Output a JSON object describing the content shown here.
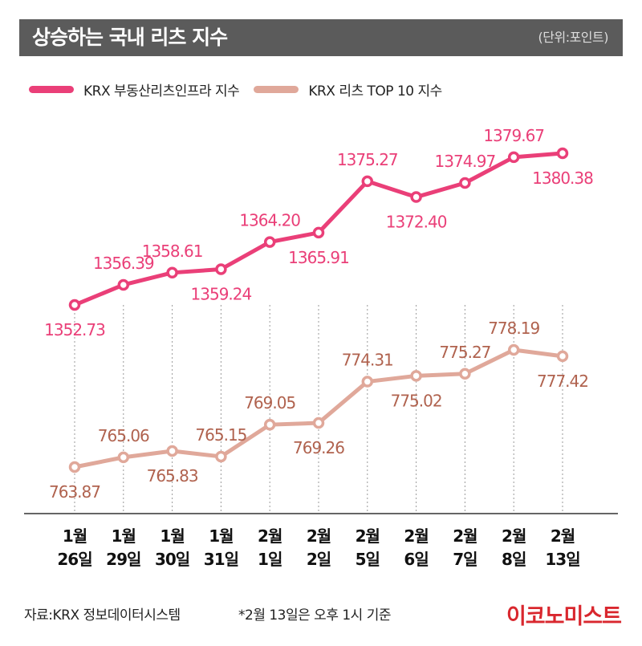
{
  "header": {
    "title": "상승하는 국내 리츠 지수",
    "unit": "(단위:포인트)"
  },
  "footer": {
    "source": "자료:KRX 정보데이터시스템",
    "note": "*2월 13일은 오후 1시 기준",
    "brand": "이코노미스트"
  },
  "colors": {
    "title_bar": "#5b5b5b",
    "series_1_line": "#ea3f78",
    "series_1_label": "#ea3f78",
    "series_2_line": "#e0a89a",
    "series_2_label": "#b0624e",
    "brand": "#d9272e"
  },
  "chart_data": {
    "type": "line",
    "categories": [
      [
        "1월",
        "26일"
      ],
      [
        "1월",
        "29일"
      ],
      [
        "1월",
        "30일"
      ],
      [
        "1월",
        "31일"
      ],
      [
        "2월",
        "1일"
      ],
      [
        "2월",
        "2일"
      ],
      [
        "2월",
        "5일"
      ],
      [
        "2월",
        "6일"
      ],
      [
        "2월",
        "7일"
      ],
      [
        "2월",
        "8일"
      ],
      [
        "2월",
        "13일"
      ]
    ],
    "series": [
      {
        "name": "KRX 부동산리츠인프라 지수",
        "values": [
          1352.73,
          1356.39,
          1358.61,
          1359.24,
          1364.2,
          1365.91,
          1375.27,
          1372.4,
          1374.97,
          1379.67,
          1380.38
        ],
        "labels": [
          "1352.73",
          "1356.39",
          "1358.61",
          "1359.24",
          "1364.20",
          "1365.91",
          "1375.27",
          "1372.40",
          "1374.97",
          "1379.67",
          "1380.38"
        ],
        "label_side": [
          "below",
          "above",
          "above",
          "below",
          "above",
          "below",
          "above",
          "below",
          "above",
          "above",
          "below"
        ]
      },
      {
        "name": "KRX 리츠 TOP 10 지수",
        "values": [
          763.87,
          765.06,
          765.83,
          765.15,
          769.05,
          769.26,
          774.31,
          775.02,
          775.27,
          778.19,
          777.42
        ],
        "labels": [
          "763.87",
          "765.06",
          "765.83",
          "765.15",
          "769.05",
          "769.26",
          "774.31",
          "775.02",
          "775.27",
          "778.19",
          "777.42"
        ],
        "label_side": [
          "below",
          "above",
          "below",
          "above",
          "above",
          "below",
          "above",
          "below",
          "above",
          "above",
          "below"
        ]
      }
    ],
    "grid": "vertical dotted"
  }
}
